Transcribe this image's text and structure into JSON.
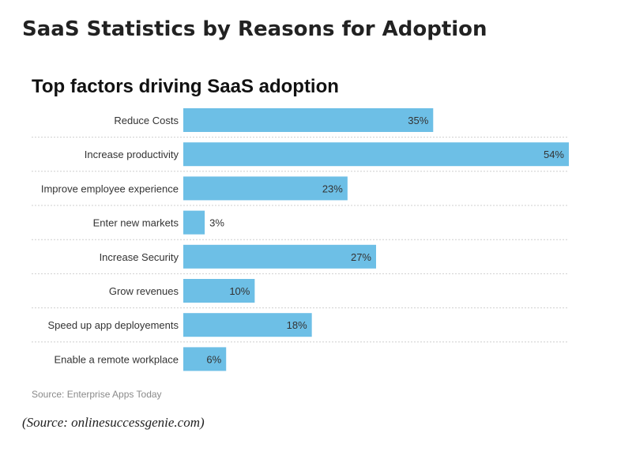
{
  "page": {
    "heading": "SaaS Statistics by Reasons for Adoption",
    "source_caption": "(Source: onlinesuccessgenie.com)"
  },
  "chart_data": {
    "type": "bar",
    "orientation": "horizontal",
    "title": "Top factors driving SaaS adoption",
    "categories": [
      "Reduce Costs",
      "Increase productivity",
      "Improve employee experience",
      "Enter new markets",
      "Increase Security",
      "Grow revenues",
      "Speed up app deployements",
      "Enable a remote workplace"
    ],
    "values": [
      35,
      54,
      23,
      3,
      27,
      10,
      18,
      6
    ],
    "data_labels": [
      "35%",
      "54%",
      "23%",
      "3%",
      "27%",
      "10%",
      "18%",
      "6%"
    ],
    "xlim": [
      0,
      54
    ],
    "xlabel": "",
    "ylabel": "",
    "grid": "dotted row separators",
    "legend": "none",
    "bar_color": "#6dbfe6",
    "source": "Source: Enterprise Apps Today"
  }
}
